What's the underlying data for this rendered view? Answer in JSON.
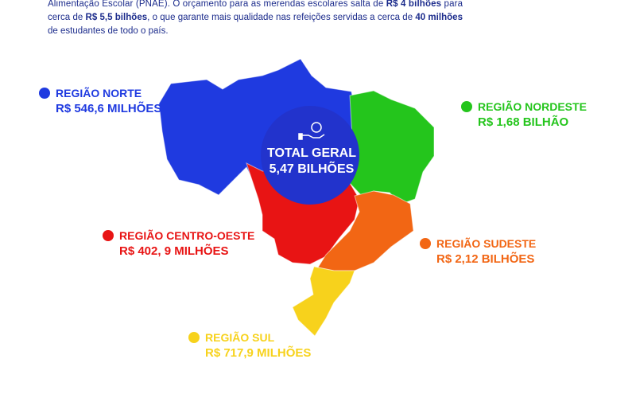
{
  "intro": {
    "lines": [
      [
        {
          "text": "Alimentação Escolar (PNAE). O orçamento para as merendas escolares salta de ",
          "bold": false
        },
        {
          "text": "R$ 4 bilhões",
          "bold": true
        },
        {
          "text": " para",
          "bold": false
        }
      ],
      [
        {
          "text": "cerca de ",
          "bold": false
        },
        {
          "text": "R$ 5,5 bilhões",
          "bold": true
        },
        {
          "text": ", o que garante mais qualidade nas refeições servidas a cerca de ",
          "bold": false
        },
        {
          "text": "40 milhões",
          "bold": true
        }
      ],
      [
        {
          "text": "de estudantes de todo o país.",
          "bold": false
        }
      ]
    ]
  },
  "total": {
    "title": "TOTAL GERAL",
    "value": "5,47 BILHÕES"
  },
  "regions": [
    {
      "name": "REGIÃO NORTE",
      "value": "R$ 546,6 MILHÕES",
      "color": "#1f3ae0"
    },
    {
      "name": "REGIÃO NORDESTE",
      "value": "R$ 1,68 BILHÃO",
      "color": "#24c51c"
    },
    {
      "name": "REGIÃO CENTRO-OESTE",
      "value": "R$ 402, 9 MILHÕES",
      "color": "#e81414"
    },
    {
      "name": "REGIÃO SUDESTE",
      "value": "R$ 2,12 BILHÕES",
      "color": "#f26614"
    },
    {
      "name": "REGIÃO SUL",
      "value": "R$ 717,9 MILHÕES",
      "color": "#f7d21c"
    }
  ]
}
